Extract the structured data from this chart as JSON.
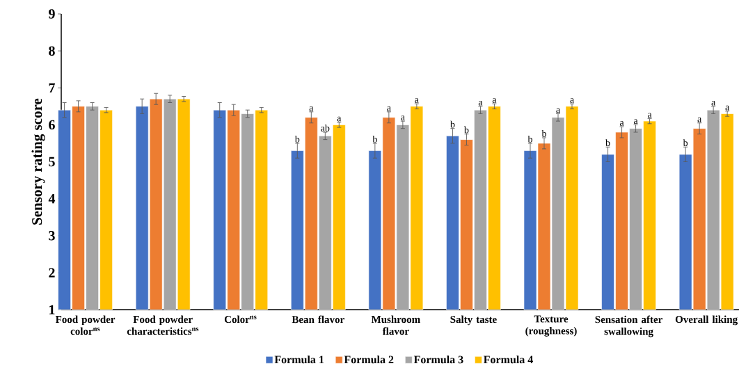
{
  "chart_data": {
    "type": "bar",
    "ylabel": "Sensory rating score",
    "categories": [
      "Food powder color$^{ns}$",
      "Food powder characteristics$^{ns}$",
      "Color$^{ns}$",
      "Bean flavor",
      "Mushroom flavor",
      "Salty taste",
      "Texture (roughness)",
      "Sensation after swallowing",
      "Overall liking"
    ],
    "series": [
      {
        "name": "Formula 1",
        "color": "#4472c4",
        "values": [
          6.4,
          6.5,
          6.4,
          5.3,
          5.3,
          5.7,
          5.3,
          5.2,
          5.2
        ],
        "errors": [
          0.2,
          0.2,
          0.2,
          0.2,
          0.2,
          0.2,
          0.2,
          0.2,
          0.2
        ],
        "value_labels": [
          null,
          null,
          null,
          "b",
          "b",
          "b",
          "b",
          "b",
          "b"
        ]
      },
      {
        "name": "Formula 2",
        "color": "#ed7d31",
        "values": [
          6.5,
          6.7,
          6.4,
          6.2,
          6.2,
          5.6,
          5.5,
          5.8,
          5.9
        ],
        "errors": [
          0.15,
          0.15,
          0.15,
          0.15,
          0.15,
          0.15,
          0.15,
          0.15,
          0.15
        ],
        "value_labels": [
          null,
          null,
          null,
          "a",
          "a",
          "b",
          "b",
          "a",
          "a"
        ]
      },
      {
        "name": "Formula 3",
        "color": "#a5a5a5",
        "values": [
          6.5,
          6.7,
          6.3,
          5.7,
          6.0,
          6.4,
          6.2,
          5.9,
          6.4
        ],
        "errors": [
          0.1,
          0.1,
          0.1,
          0.1,
          0.1,
          0.1,
          0.1,
          0.1,
          0.1
        ],
        "value_labels": [
          null,
          null,
          null,
          "ab",
          "a",
          "a",
          "a",
          "a",
          "a"
        ]
      },
      {
        "name": "Formula 4",
        "color": "#ffc000",
        "values": [
          6.4,
          6.7,
          6.4,
          6.0,
          6.5,
          6.5,
          6.5,
          6.1,
          6.3
        ],
        "errors": [
          0.07,
          0.07,
          0.07,
          0.07,
          0.07,
          0.07,
          0.07,
          0.07,
          0.07
        ],
        "value_labels": [
          null,
          null,
          null,
          "a",
          "a",
          "a",
          "a",
          "a",
          "a"
        ]
      }
    ],
    "ylim": [
      1,
      9
    ],
    "yticks": [
      1,
      2,
      3,
      4,
      5,
      6,
      7,
      8,
      9
    ],
    "grid": false,
    "legend": "bottom"
  }
}
